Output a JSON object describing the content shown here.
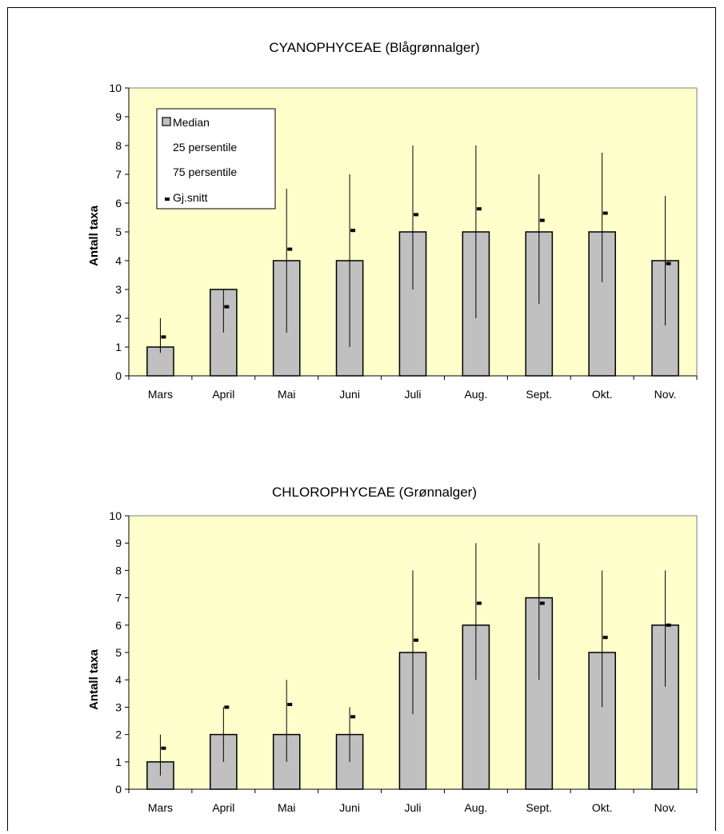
{
  "chart_data": [
    {
      "type": "bar",
      "title": "CYANOPHYCEAE (Blågrønnalger)",
      "ylabel": "Antall taxa",
      "xlabel": "",
      "ylim": [
        0,
        10
      ],
      "yticks": [
        0,
        1,
        2,
        3,
        4,
        5,
        6,
        7,
        8,
        9,
        10
      ],
      "categories": [
        "Mars",
        "April",
        "Mai",
        "Juni",
        "Juli",
        "Aug.",
        "Sept.",
        "Okt.",
        "Nov."
      ],
      "series": [
        {
          "name": "Median",
          "values": [
            1,
            3,
            4,
            4,
            5,
            5,
            5,
            5,
            4
          ]
        },
        {
          "name": "25 persentile",
          "values": [
            0.8,
            1.5,
            1.5,
            1,
            3,
            2,
            2.5,
            3.25,
            1.75
          ]
        },
        {
          "name": "75 persentile",
          "values": [
            2,
            3,
            6.5,
            7,
            8,
            8,
            7,
            7.75,
            6.25
          ]
        },
        {
          "name": "Gj.snitt",
          "values": [
            1.35,
            2.4,
            4.4,
            5.05,
            5.6,
            5.8,
            5.4,
            5.65,
            3.9
          ]
        }
      ],
      "legend": [
        "Median",
        "25 persentile",
        "75 persentile",
        "Gj.snitt"
      ],
      "legend_position": "top-left",
      "plot_background": "#ffffcc",
      "bar_color": "#c0c0c0"
    },
    {
      "type": "bar",
      "title": "CHLOROPHYCEAE (Grønnalger)",
      "ylabel": "Antall taxa",
      "xlabel": "",
      "ylim": [
        0,
        10
      ],
      "yticks": [
        0,
        1,
        2,
        3,
        4,
        5,
        6,
        7,
        8,
        9,
        10
      ],
      "categories": [
        "Mars",
        "April",
        "Mai",
        "Juni",
        "Juli",
        "Aug.",
        "Sept.",
        "Okt.",
        "Nov."
      ],
      "series": [
        {
          "name": "Median",
          "values": [
            1,
            2,
            2,
            2,
            5,
            6,
            7,
            5,
            6
          ]
        },
        {
          "name": "25 persentile",
          "values": [
            0.5,
            1,
            1,
            1,
            2.75,
            4,
            4,
            3,
            3.75
          ]
        },
        {
          "name": "75 persentile",
          "values": [
            2,
            3,
            4,
            3,
            8,
            9,
            9,
            8,
            8
          ]
        },
        {
          "name": "Gj.snitt",
          "values": [
            1.5,
            3,
            3.1,
            2.65,
            5.45,
            6.8,
            6.8,
            5.55,
            6
          ]
        }
      ],
      "plot_background": "#ffffcc",
      "bar_color": "#c0c0c0"
    }
  ]
}
